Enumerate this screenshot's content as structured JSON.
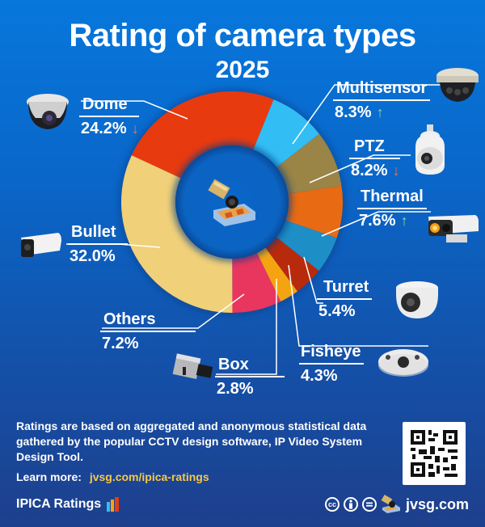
{
  "header": {
    "title": "Rating of camera types",
    "year": "2025"
  },
  "labels": [
    {
      "name": "Dome",
      "value": "24.2%",
      "trend": "down"
    },
    {
      "name": "Multisensor",
      "value": "8.3%",
      "trend": "up"
    },
    {
      "name": "PTZ",
      "value": "8.2%",
      "trend": "down"
    },
    {
      "name": "Thermal",
      "value": "7.6%",
      "trend": "up"
    },
    {
      "name": "Turret",
      "value": "5.4%",
      "trend": ""
    },
    {
      "name": "Fisheye",
      "value": "4.3%",
      "trend": ""
    },
    {
      "name": "Box",
      "value": "2.8%",
      "trend": ""
    },
    {
      "name": "Others",
      "value": "7.2%",
      "trend": ""
    },
    {
      "name": "Bullet",
      "value": "32.0%",
      "trend": ""
    }
  ],
  "trend_icons": {
    "down": "↓",
    "up": "↑"
  },
  "footer": {
    "description": "Ratings are based on aggregated and anonymous statistical data gathered by the popular CCTV design software, IP Video System Design Tool.",
    "learn_more_label": "Learn more:",
    "learn_more_link": "jvsg.com/ipica-ratings",
    "brand": "IPICA Ratings",
    "site": "jvsg.com",
    "license_icons": [
      "cc-icon",
      "attribution-icon",
      "no-derivatives-icon"
    ]
  },
  "colors": {
    "Dome": "#e83a0f",
    "Multisensor": "#33bdf5",
    "PTZ": "#9a8446",
    "Thermal": "#e86a12",
    "Turret": "#1e8ec6",
    "Fisheye": "#b82a0c",
    "Box": "#f5a411",
    "Others": "#e8365f",
    "Bullet": "#f0d078",
    "accent_link": "#f5c84a",
    "trend_down": "#f0705a",
    "trend_up": "#8fd49a"
  },
  "chart_data": {
    "type": "pie",
    "subtype": "donut",
    "title": "Rating of camera types 2025",
    "categories": [
      "Dome",
      "Multisensor",
      "PTZ",
      "Thermal",
      "Turret",
      "Fisheye",
      "Box",
      "Others",
      "Bullet"
    ],
    "values": [
      24.2,
      8.3,
      8.2,
      7.6,
      5.4,
      4.3,
      2.8,
      7.2,
      32.0
    ],
    "unit": "%",
    "trends": {
      "Dome": "down",
      "Multisensor": "up",
      "PTZ": "down",
      "Thermal": "up"
    },
    "start_angle_deg": -65,
    "direction": "clockwise",
    "legend": "none (direct leader-line labels)"
  }
}
